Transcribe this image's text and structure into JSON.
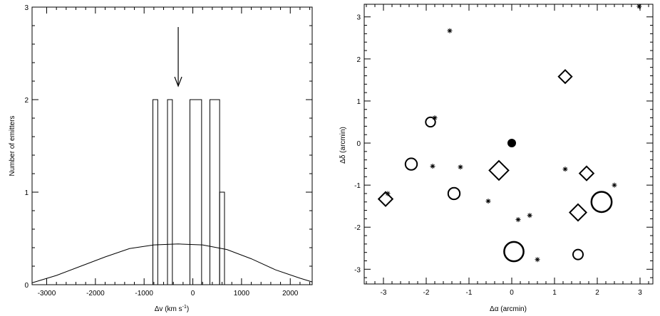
{
  "chart_data": [
    {
      "type": "histogram",
      "xlabel_main": "Δv (km s",
      "xlabel_sup": "-1",
      "xlabel_close": ")",
      "ylabel": "Number of emitters",
      "xlim": [
        -3300,
        2450
      ],
      "ylim": [
        0,
        3
      ],
      "xticks": [
        -3000,
        -2000,
        -1000,
        0,
        1000,
        2000
      ],
      "yticks": [
        0,
        1,
        2,
        3
      ],
      "bins": [
        {
          "x0": -820,
          "x1": -720,
          "count": 2
        },
        {
          "x0": -520,
          "x1": -420,
          "count": 2
        },
        {
          "x0": -60,
          "x1": 180,
          "count": 2
        },
        {
          "x0": 350,
          "x1": 550,
          "count": 2
        },
        {
          "x0": 550,
          "x1": 650,
          "count": 1
        }
      ],
      "bin_outline_to_zero": true,
      "curve": {
        "x": [
          -3300,
          -2800,
          -2300,
          -1800,
          -1300,
          -800,
          -300,
          200,
          700,
          1200,
          1700,
          2200,
          2450
        ],
        "y": [
          0.02,
          0.1,
          0.2,
          0.3,
          0.39,
          0.43,
          0.44,
          0.43,
          0.38,
          0.28,
          0.16,
          0.07,
          0.03
        ]
      },
      "arrow_x": -300
    },
    {
      "type": "scatter",
      "xlabel": "Δα (arcmin)",
      "ylabel": "Δδ (arcmin)",
      "xlim": [
        -3.45,
        3.3
      ],
      "ylim": [
        -3.35,
        3.3
      ],
      "xticks": [
        -3,
        -2,
        -1,
        0,
        1,
        2,
        3
      ],
      "yticks": [
        -3,
        -2,
        -1,
        0,
        1,
        2,
        3
      ],
      "points": [
        {
          "x": 0.0,
          "y": 0.0,
          "marker": "filled-circle",
          "size": 1
        },
        {
          "x": -1.9,
          "y": 0.5,
          "marker": "circle",
          "size": 0.45
        },
        {
          "x": -2.35,
          "y": -0.5,
          "marker": "circle",
          "size": 0.7
        },
        {
          "x": -1.35,
          "y": -1.2,
          "marker": "circle",
          "size": 0.7
        },
        {
          "x": 0.05,
          "y": -2.58,
          "marker": "circle",
          "size": 1.6
        },
        {
          "x": 2.1,
          "y": -1.4,
          "marker": "circle",
          "size": 1.7
        },
        {
          "x": 1.55,
          "y": -2.65,
          "marker": "circle",
          "size": 0.5
        },
        {
          "x": -0.3,
          "y": -0.65,
          "marker": "diamond",
          "size": 1.4
        },
        {
          "x": 1.25,
          "y": 1.58,
          "marker": "diamond",
          "size": 0.7
        },
        {
          "x": 1.75,
          "y": -0.72,
          "marker": "diamond",
          "size": 0.8
        },
        {
          "x": -2.95,
          "y": -1.33,
          "marker": "diamond",
          "size": 0.8
        },
        {
          "x": 1.55,
          "y": -1.65,
          "marker": "diamond",
          "size": 1.1
        },
        {
          "x": -1.45,
          "y": 2.67,
          "marker": "asterisk",
          "size": 0.5
        },
        {
          "x": 2.98,
          "y": 3.25,
          "marker": "asterisk",
          "size": 0.5
        },
        {
          "x": -1.8,
          "y": 0.6,
          "marker": "asterisk",
          "size": 0.5
        },
        {
          "x": -1.85,
          "y": -0.55,
          "marker": "asterisk",
          "size": 0.5
        },
        {
          "x": -1.2,
          "y": -0.57,
          "marker": "asterisk",
          "size": 0.5
        },
        {
          "x": 1.25,
          "y": -0.62,
          "marker": "asterisk",
          "size": 0.5
        },
        {
          "x": 2.4,
          "y": -1.0,
          "marker": "asterisk",
          "size": 0.5
        },
        {
          "x": -2.9,
          "y": -1.2,
          "marker": "asterisk",
          "size": 0.5
        },
        {
          "x": -0.55,
          "y": -1.38,
          "marker": "asterisk",
          "size": 0.5
        },
        {
          "x": 0.42,
          "y": -1.72,
          "marker": "asterisk",
          "size": 0.5
        },
        {
          "x": 0.15,
          "y": -1.82,
          "marker": "asterisk",
          "size": 0.5
        },
        {
          "x": 0.6,
          "y": -2.77,
          "marker": "asterisk",
          "size": 0.5
        }
      ]
    }
  ]
}
